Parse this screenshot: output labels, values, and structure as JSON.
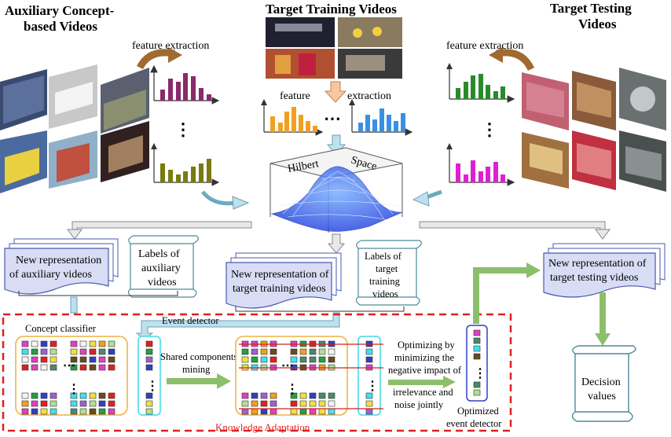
{
  "titles": {
    "auxiliary": [
      "Auxiliary Concept-",
      "based Videos"
    ],
    "training": "Target Training Videos",
    "testing": [
      "Target Testing",
      "Videos"
    ]
  },
  "labels": {
    "feature_extraction_left": "feature extraction",
    "feature_extraction_right": "feature extraction",
    "feature": "feature",
    "extraction": "extraction",
    "hilbert": "Hilbert",
    "space": "Space"
  },
  "documents": {
    "aux_repr": [
      "New representation",
      "of auxiliary videos"
    ],
    "aux_labels": [
      "Labels of",
      "auxiliary",
      "videos"
    ],
    "train_repr": [
      "New representation of",
      "target training videos"
    ],
    "train_labels": [
      "Labels of",
      "target",
      "training",
      "videos"
    ],
    "test_repr": [
      "New representation of",
      "target testing videos"
    ],
    "decision": [
      "Decision",
      "values"
    ]
  },
  "adaptation": {
    "concept_classifier": "Concept classifier",
    "event_detector": "Event detector",
    "shared_mining": [
      "Shared components",
      "mining"
    ],
    "optimizing": [
      "Optimizing by",
      "minimizing  the",
      "negative impact of",
      "irrelevance and",
      "noise jointly"
    ],
    "optimized_detector": [
      "Optimized",
      "event detector"
    ],
    "knowledge_adaptation": "Knowledge Adaptation"
  },
  "colors": {
    "frame_dashed": "#e02020",
    "classifier_box": "#f0b040",
    "detector_box": "#40d8e8",
    "optimized_box": "#3040c0",
    "green_arrow": "#8cbf6a",
    "scroll_stroke": "#4a8a9a",
    "aux_hist_1": "#8a2a6a",
    "aux_hist_2": "#7a7a10",
    "train_hist_1": "#f0a020",
    "train_hist_2": "#3a90e0",
    "test_hist_1": "#2a8a2a",
    "test_hist_2": "#e020d0"
  }
}
